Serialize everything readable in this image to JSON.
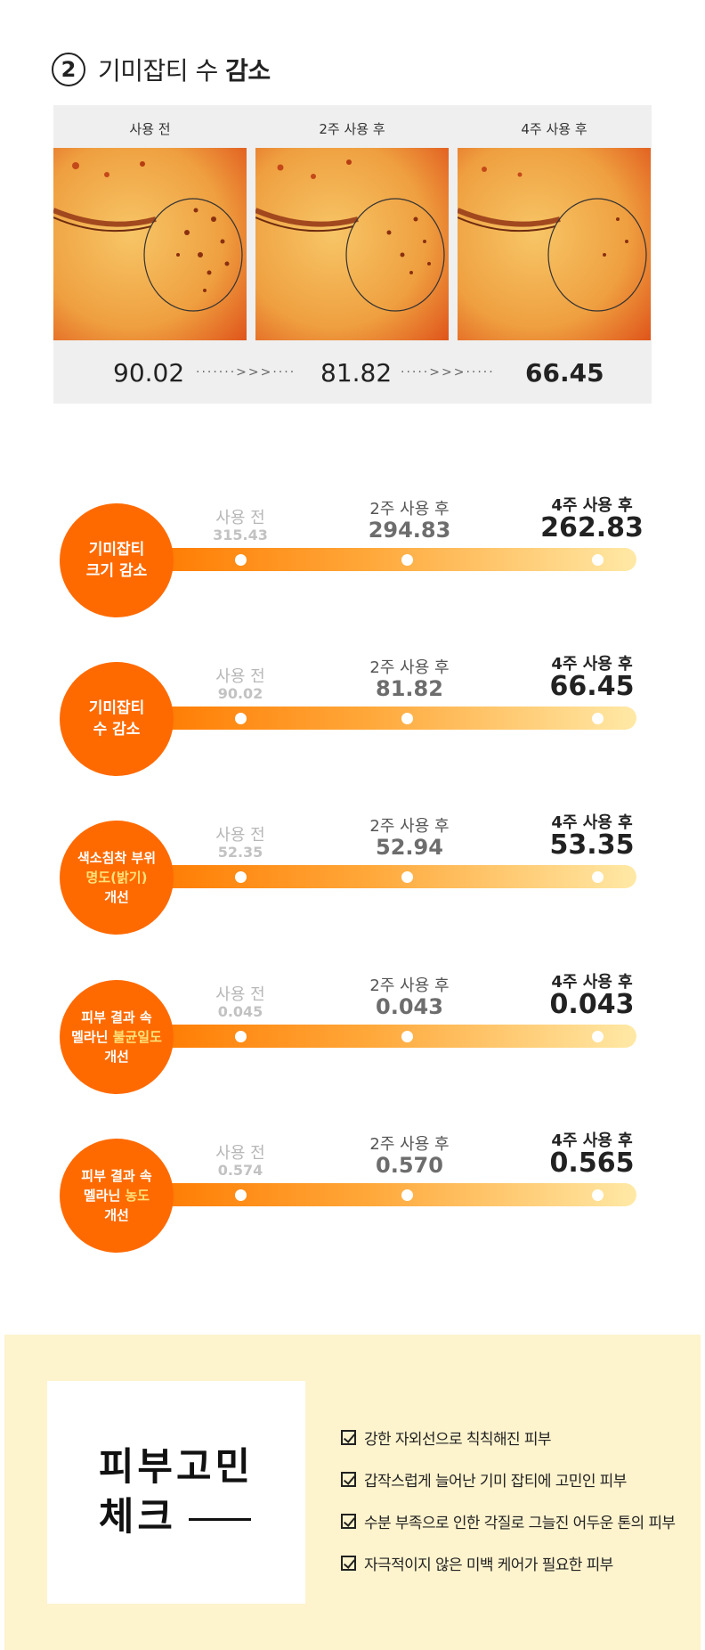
{
  "section": {
    "number": "2",
    "title_regular": "기미잡티 수 ",
    "title_bold": "감소"
  },
  "comparison": {
    "labels": [
      "사용 전",
      "2주 사용 후",
      "4주 사용 후"
    ],
    "scores": [
      "90.02",
      "81.82",
      "66.45"
    ],
    "dots": "·······>>>····",
    "dots2": "·····>>>·····"
  },
  "metrics": [
    {
      "circle": [
        "기미잡티",
        "크기 감소"
      ],
      "before_label": "사용 전",
      "before_value": "315.43",
      "w2_label": "2주 사용 후",
      "w2_value": "294.83",
      "w4_label": "4주 사용 후",
      "w4_value": "262.83"
    },
    {
      "circle": [
        "기미잡티",
        "수 감소"
      ],
      "before_label": "사용 전",
      "before_value": "90.02",
      "w2_label": "2주 사용 후",
      "w2_value": "81.82",
      "w4_label": "4주 사용 후",
      "w4_value": "66.45"
    },
    {
      "circle_top": "색소침착 부위",
      "circle_mid": "명도(밝기)",
      "circle_bottom": "개선",
      "before_label": "사용 전",
      "before_value": "52.35",
      "w2_label": "2주 사용 후",
      "w2_value": "52.94",
      "w4_label": "4주 사용 후",
      "w4_value": "53.35"
    },
    {
      "circle_top": "피부 결과 속",
      "circle_mid_a": "멜라닌 ",
      "circle_mid_b": "불균일도",
      "circle_bottom": "개선",
      "before_label": "사용 전",
      "before_value": "0.045",
      "w2_label": "2주 사용 후",
      "w2_value": "0.043",
      "w4_label": "4주 사용 후",
      "w4_value": "0.043"
    },
    {
      "circle_top": "피부 결과 속",
      "circle_mid_a": "멜라닌 ",
      "circle_mid_b": "농도",
      "circle_bottom": "개선",
      "before_label": "사용 전",
      "before_value": "0.574",
      "w2_label": "2주 사용 후",
      "w2_value": "0.570",
      "w4_label": "4주 사용 후",
      "w4_value": "0.565"
    }
  ],
  "check": {
    "title_line1": "피부고민",
    "title_line2": "체크",
    "items": [
      "강한 자외선으로 칙칙해진 피부",
      "갑작스럽게 늘어난 기미 잡티에 고민인 피부",
      "수분 부족으로 인한 각질로 그늘진 어두운 톤의 피부",
      "자극적이지 않은 미백 케어가 필요한 피부"
    ]
  },
  "colors": {
    "accent": "#ff6a00",
    "highlight": "#ffe27a",
    "check_bg": "#fdf3cd",
    "panel_bg": "#efefef"
  }
}
